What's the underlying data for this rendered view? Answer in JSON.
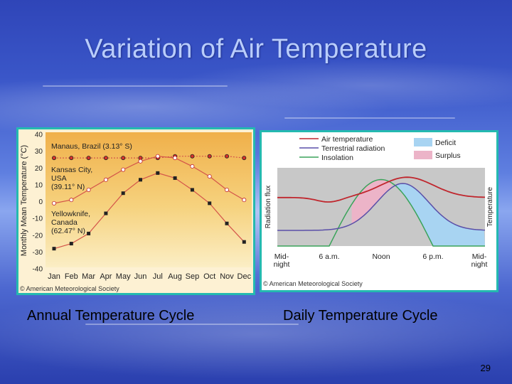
{
  "slide": {
    "title": "Variation of Air Temperature",
    "caption_left": "Annual Temperature Cycle",
    "caption_right": "Daily Temperature Cycle",
    "page_number": "29"
  },
  "colors": {
    "panel_border": "#24b9b0",
    "deficit": "#a8d4f2",
    "surplus": "#ecb4c8"
  },
  "chart_data": [
    {
      "type": "line",
      "ylabel": "Monthly Mean Temperature (°C)",
      "xlabel": "",
      "categories": [
        "Jan",
        "Feb",
        "Mar",
        "Apr",
        "May",
        "Jun",
        "Jul",
        "Aug",
        "Sep",
        "Oct",
        "Nov",
        "Dec"
      ],
      "ylim": [
        -40,
        40
      ],
      "yticks": [
        40,
        30,
        20,
        10,
        0,
        -10,
        -20,
        -30,
        -40
      ],
      "series": [
        {
          "name": "Manaus, Brazil (3.13° S)",
          "values": [
            26,
            26,
            26,
            26,
            26,
            26,
            26,
            27,
            27,
            27,
            27,
            26
          ]
        },
        {
          "name": "Kansas City, USA (39.11° N)",
          "values": [
            -1,
            1,
            7,
            13,
            19,
            24,
            27,
            26,
            21,
            15,
            7,
            1
          ]
        },
        {
          "name": "Yellowknife, Canada (62.47° N)",
          "values": [
            -28,
            -25,
            -19,
            -7,
            5,
            13,
            17,
            14,
            7,
            -1,
            -13,
            -24
          ]
        }
      ],
      "labels": {
        "manaus": "Manaus, Brazil (3.13° S)",
        "kansas": [
          "Kansas City,",
          "USA",
          "(39.11° N)"
        ],
        "yellowknife": [
          "Yellowknife,",
          "Canada",
          "(62.47° N)"
        ]
      },
      "credit": "© American Meteorological Society"
    },
    {
      "type": "area",
      "xlabel": "",
      "ylabel": "Radiation flux",
      "ylabel_right": "Temperature",
      "x_ticks": [
        "Mid-\nnight",
        "6 a.m.",
        "Noon",
        "6 p.m.",
        "Mid-\nnight"
      ],
      "x_range_hours": [
        0,
        24
      ],
      "series": [
        {
          "name": "Air temperature",
          "color": "#c0262d"
        },
        {
          "name": "Terrestrial radiation",
          "color": "#5a4fa8"
        },
        {
          "name": "Insolation",
          "color": "#3aa35a"
        }
      ],
      "legend_boxes": [
        {
          "name": "Deficit",
          "color": "#a8d4f2"
        },
        {
          "name": "Surplus",
          "color": "#ecb4c8"
        }
      ],
      "credit": "© American Meteorological Society"
    }
  ]
}
